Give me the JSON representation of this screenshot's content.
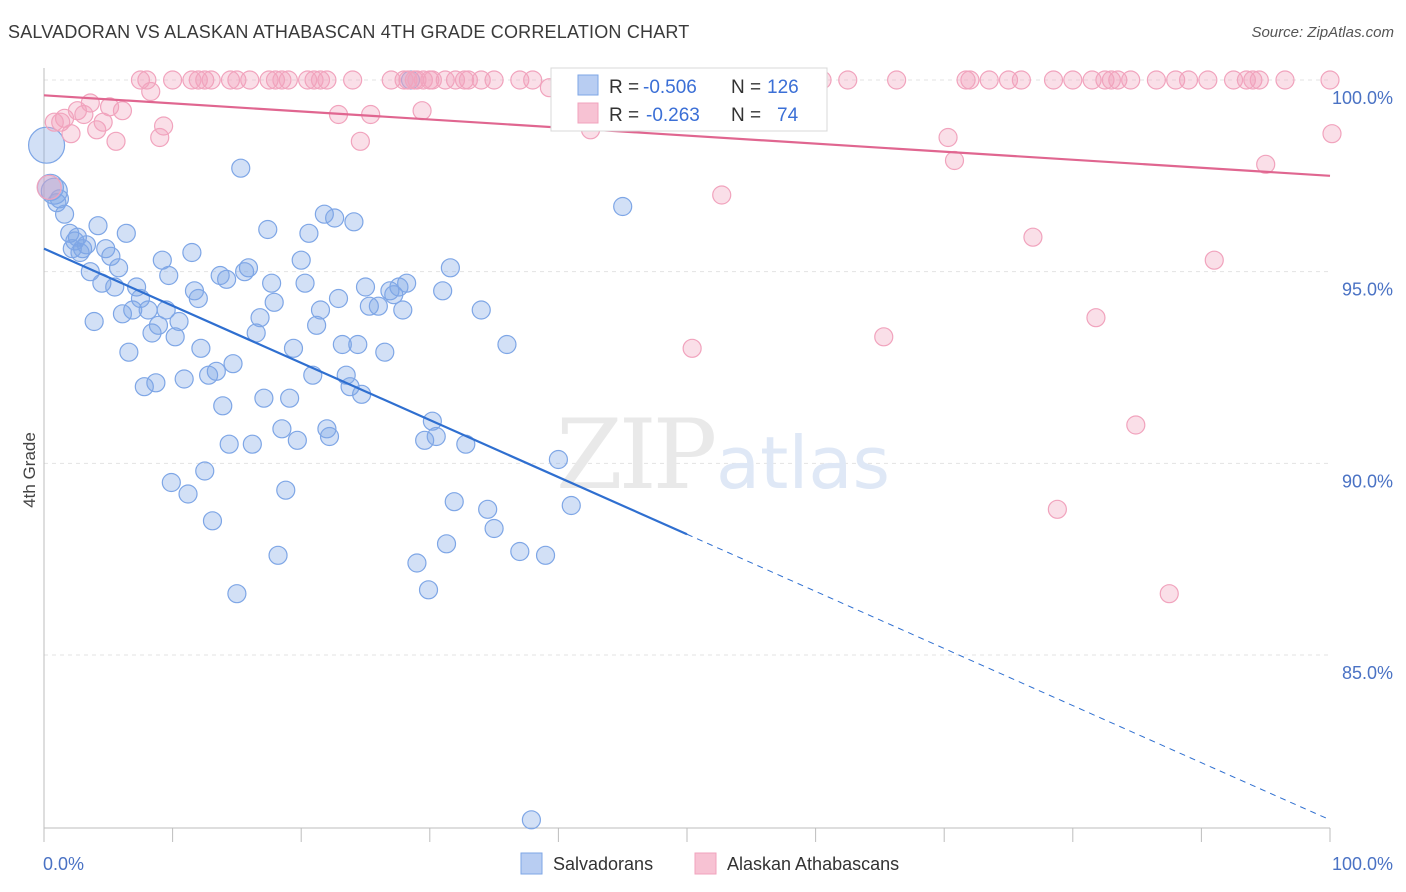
{
  "header": {
    "title": "SALVADORAN VS ALASKAN ATHABASCAN 4TH GRADE CORRELATION CHART",
    "source": "Source: ZipAtlas.com"
  },
  "watermark": {
    "zip": "ZIP",
    "atlas": "atlas"
  },
  "legend": {
    "rows": [
      {
        "r_label": "R =",
        "r_value": "-0.506",
        "n_label": "N =",
        "n_value": "126"
      },
      {
        "r_label": "R =",
        "r_value": "-0.263",
        "n_label": "N =",
        "n_value": "74"
      }
    ]
  },
  "chart_data": {
    "type": "scatter",
    "title": "SALVADORAN VS ALASKAN ATHABASCAN 4TH GRADE CORRELATION CHART",
    "xlabel": "",
    "ylabel": "4th Grade",
    "xlim": [
      0,
      100
    ],
    "ylim": [
      80.5,
      100.8
    ],
    "x_tick_labels": [
      "0.0%",
      "100.0%"
    ],
    "y_ticks": [
      {
        "value": 100,
        "label": "100.0%"
      },
      {
        "value": 95,
        "label": "95.0%"
      },
      {
        "value": 90,
        "label": "90.0%"
      },
      {
        "value": 85,
        "label": "85.0%"
      }
    ],
    "grid": true,
    "legend_position": "top-center",
    "series": [
      {
        "name": "Salvadorans",
        "color": "#7ea6e6",
        "line_color": "#2f6fd0",
        "r": -0.506,
        "n": 126,
        "trend": {
          "x0": 0,
          "y0": 95.6,
          "x1": 100,
          "y1": 80.7,
          "solid_until_x": 50
        },
        "points": [
          [
            0.2,
            98.3
          ],
          [
            0.5,
            97.2
          ],
          [
            0.8,
            97.1
          ],
          [
            1.0,
            96.8
          ],
          [
            1.2,
            96.9
          ],
          [
            1.6,
            96.5
          ],
          [
            2.0,
            96.0
          ],
          [
            2.2,
            95.6
          ],
          [
            2.4,
            95.8
          ],
          [
            2.6,
            95.9
          ],
          [
            2.8,
            95.5
          ],
          [
            3.0,
            95.6
          ],
          [
            3.3,
            95.7
          ],
          [
            3.6,
            95.0
          ],
          [
            3.9,
            93.7
          ],
          [
            4.2,
            96.2
          ],
          [
            4.5,
            94.7
          ],
          [
            4.8,
            95.6
          ],
          [
            5.2,
            95.4
          ],
          [
            5.5,
            94.6
          ],
          [
            5.8,
            95.1
          ],
          [
            6.1,
            93.9
          ],
          [
            6.4,
            96.0
          ],
          [
            6.6,
            92.9
          ],
          [
            6.9,
            94.0
          ],
          [
            7.2,
            94.6
          ],
          [
            7.5,
            94.3
          ],
          [
            7.8,
            92.0
          ],
          [
            8.1,
            94.0
          ],
          [
            8.4,
            93.4
          ],
          [
            8.7,
            92.1
          ],
          [
            8.9,
            93.6
          ],
          [
            9.2,
            95.3
          ],
          [
            9.5,
            94.0
          ],
          [
            9.7,
            94.9
          ],
          [
            9.9,
            89.5
          ],
          [
            10.2,
            93.3
          ],
          [
            10.5,
            93.7
          ],
          [
            10.9,
            92.2
          ],
          [
            11.2,
            89.2
          ],
          [
            11.5,
            95.5
          ],
          [
            11.7,
            94.5
          ],
          [
            12.0,
            94.3
          ],
          [
            12.2,
            93.0
          ],
          [
            12.5,
            89.8
          ],
          [
            12.8,
            92.3
          ],
          [
            13.1,
            88.5
          ],
          [
            13.4,
            92.4
          ],
          [
            13.7,
            94.9
          ],
          [
            13.9,
            91.5
          ],
          [
            14.2,
            94.8
          ],
          [
            14.4,
            90.5
          ],
          [
            14.7,
            92.6
          ],
          [
            15.0,
            86.6
          ],
          [
            15.3,
            97.7
          ],
          [
            15.6,
            95.0
          ],
          [
            15.9,
            95.1
          ],
          [
            16.2,
            90.5
          ],
          [
            16.5,
            93.4
          ],
          [
            16.8,
            93.8
          ],
          [
            17.1,
            91.7
          ],
          [
            17.4,
            96.1
          ],
          [
            17.7,
            94.7
          ],
          [
            17.9,
            94.2
          ],
          [
            18.2,
            87.6
          ],
          [
            18.5,
            90.9
          ],
          [
            18.8,
            89.3
          ],
          [
            19.1,
            91.7
          ],
          [
            19.4,
            93.0
          ],
          [
            19.7,
            90.6
          ],
          [
            20.0,
            95.3
          ],
          [
            20.3,
            94.7
          ],
          [
            20.6,
            96.0
          ],
          [
            20.9,
            92.3
          ],
          [
            21.2,
            93.6
          ],
          [
            21.5,
            94.0
          ],
          [
            21.8,
            96.5
          ],
          [
            22.0,
            90.9
          ],
          [
            22.2,
            90.7
          ],
          [
            22.6,
            96.4
          ],
          [
            22.9,
            94.3
          ],
          [
            23.2,
            93.1
          ],
          [
            23.5,
            92.3
          ],
          [
            23.8,
            92.0
          ],
          [
            24.1,
            96.3
          ],
          [
            24.4,
            93.1
          ],
          [
            24.7,
            91.8
          ],
          [
            25.0,
            94.6
          ],
          [
            25.3,
            94.1
          ],
          [
            26.0,
            94.1
          ],
          [
            26.5,
            92.9
          ],
          [
            26.9,
            94.5
          ],
          [
            27.2,
            94.4
          ],
          [
            27.6,
            94.6
          ],
          [
            27.9,
            94.0
          ],
          [
            28.2,
            94.7
          ],
          [
            28.5,
            100.0
          ],
          [
            29.0,
            87.4
          ],
          [
            29.6,
            90.6
          ],
          [
            29.9,
            86.7
          ],
          [
            30.2,
            91.1
          ],
          [
            30.5,
            90.7
          ],
          [
            31.0,
            94.5
          ],
          [
            31.3,
            87.9
          ],
          [
            31.6,
            95.1
          ],
          [
            31.9,
            89.0
          ],
          [
            32.8,
            90.5
          ],
          [
            34.0,
            94.0
          ],
          [
            34.5,
            88.8
          ],
          [
            35.0,
            88.3
          ],
          [
            36.0,
            93.1
          ],
          [
            37.0,
            87.7
          ],
          [
            37.9,
            80.7
          ],
          [
            39.0,
            87.6
          ],
          [
            40.0,
            90.1
          ],
          [
            41.0,
            88.9
          ],
          [
            43.0,
            100.0
          ],
          [
            43.3,
            100.0
          ],
          [
            43.6,
            100.0
          ],
          [
            43.9,
            100.0
          ],
          [
            44.2,
            100.0
          ],
          [
            45.0,
            96.7
          ]
        ]
      },
      {
        "name": "Alaskan Athabascans",
        "color": "#f1a3bd",
        "line_color": "#e06690",
        "r": -0.263,
        "n": 74,
        "trend": {
          "x0": 0,
          "y0": 99.6,
          "x1": 100,
          "y1": 97.5,
          "solid_until_x": 100
        },
        "points": [
          [
            0.4,
            97.2
          ],
          [
            0.8,
            98.9
          ],
          [
            1.3,
            98.9
          ],
          [
            1.6,
            99.0
          ],
          [
            2.1,
            98.6
          ],
          [
            2.6,
            99.2
          ],
          [
            3.1,
            99.1
          ],
          [
            3.6,
            99.4
          ],
          [
            4.1,
            98.7
          ],
          [
            4.6,
            98.9
          ],
          [
            5.1,
            99.3
          ],
          [
            5.6,
            98.4
          ],
          [
            6.1,
            99.2
          ],
          [
            7.5,
            100.0
          ],
          [
            8.0,
            100.0
          ],
          [
            8.3,
            99.7
          ],
          [
            9.0,
            98.5
          ],
          [
            9.3,
            98.8
          ],
          [
            10.0,
            100.0
          ],
          [
            11.5,
            100.0
          ],
          [
            12.0,
            100.0
          ],
          [
            12.5,
            100.0
          ],
          [
            13.0,
            100.0
          ],
          [
            14.5,
            100.0
          ],
          [
            15.0,
            100.0
          ],
          [
            16.0,
            100.0
          ],
          [
            17.5,
            100.0
          ],
          [
            18.0,
            100.0
          ],
          [
            18.5,
            100.0
          ],
          [
            19.0,
            100.0
          ],
          [
            20.5,
            100.0
          ],
          [
            21.0,
            100.0
          ],
          [
            21.5,
            100.0
          ],
          [
            22.0,
            100.0
          ],
          [
            24.0,
            100.0
          ],
          [
            27.0,
            100.0
          ],
          [
            29.0,
            100.0
          ],
          [
            29.5,
            100.0
          ],
          [
            30.0,
            100.0
          ],
          [
            32.0,
            100.0
          ],
          [
            33.0,
            100.0
          ],
          [
            35.0,
            100.0
          ],
          [
            37.0,
            100.0
          ],
          [
            38.0,
            100.0
          ],
          [
            22.9,
            99.1
          ],
          [
            24.6,
            98.4
          ],
          [
            25.4,
            99.1
          ],
          [
            28.0,
            100.0
          ],
          [
            28.3,
            100.0
          ],
          [
            28.8,
            100.0
          ],
          [
            29.4,
            99.2
          ],
          [
            30.2,
            100.0
          ],
          [
            31.2,
            100.0
          ],
          [
            32.7,
            100.0
          ],
          [
            34.0,
            100.0
          ],
          [
            39.3,
            99.8
          ],
          [
            41.4,
            100.0
          ],
          [
            42.5,
            98.7
          ],
          [
            43.0,
            100.0
          ],
          [
            44.0,
            100.0
          ],
          [
            44.5,
            100.0
          ],
          [
            45.0,
            100.0
          ],
          [
            50.5,
            100.0
          ],
          [
            51.0,
            100.0
          ],
          [
            52.5,
            100.0
          ],
          [
            55.0,
            100.0
          ],
          [
            57.0,
            100.0
          ],
          [
            50.4,
            93.0
          ],
          [
            52.7,
            97.0
          ],
          [
            58.0,
            100.0
          ],
          [
            60.5,
            100.0
          ],
          [
            62.5,
            100.0
          ],
          [
            65.3,
            93.3
          ],
          [
            66.3,
            100.0
          ],
          [
            70.3,
            98.5
          ],
          [
            70.8,
            97.9
          ],
          [
            71.7,
            100.0
          ],
          [
            72.0,
            100.0
          ],
          [
            73.5,
            100.0
          ],
          [
            75.0,
            100.0
          ],
          [
            76.0,
            100.0
          ],
          [
            76.9,
            95.9
          ],
          [
            78.5,
            100.0
          ],
          [
            80.0,
            100.0
          ],
          [
            78.8,
            88.8
          ],
          [
            81.5,
            100.0
          ],
          [
            81.8,
            93.8
          ],
          [
            82.5,
            100.0
          ],
          [
            83.0,
            100.0
          ],
          [
            83.5,
            100.0
          ],
          [
            84.5,
            100.0
          ],
          [
            84.9,
            91.0
          ],
          [
            86.5,
            100.0
          ],
          [
            87.5,
            86.6
          ],
          [
            88.0,
            100.0
          ],
          [
            89.0,
            100.0
          ],
          [
            90.5,
            100.0
          ],
          [
            91.0,
            95.3
          ],
          [
            92.5,
            100.0
          ],
          [
            93.5,
            100.0
          ],
          [
            94.0,
            100.0
          ],
          [
            94.5,
            100.0
          ],
          [
            95.0,
            97.8
          ],
          [
            96.5,
            100.0
          ],
          [
            100.0,
            100.0
          ],
          [
            101.0,
            98.6
          ]
        ]
      }
    ]
  }
}
